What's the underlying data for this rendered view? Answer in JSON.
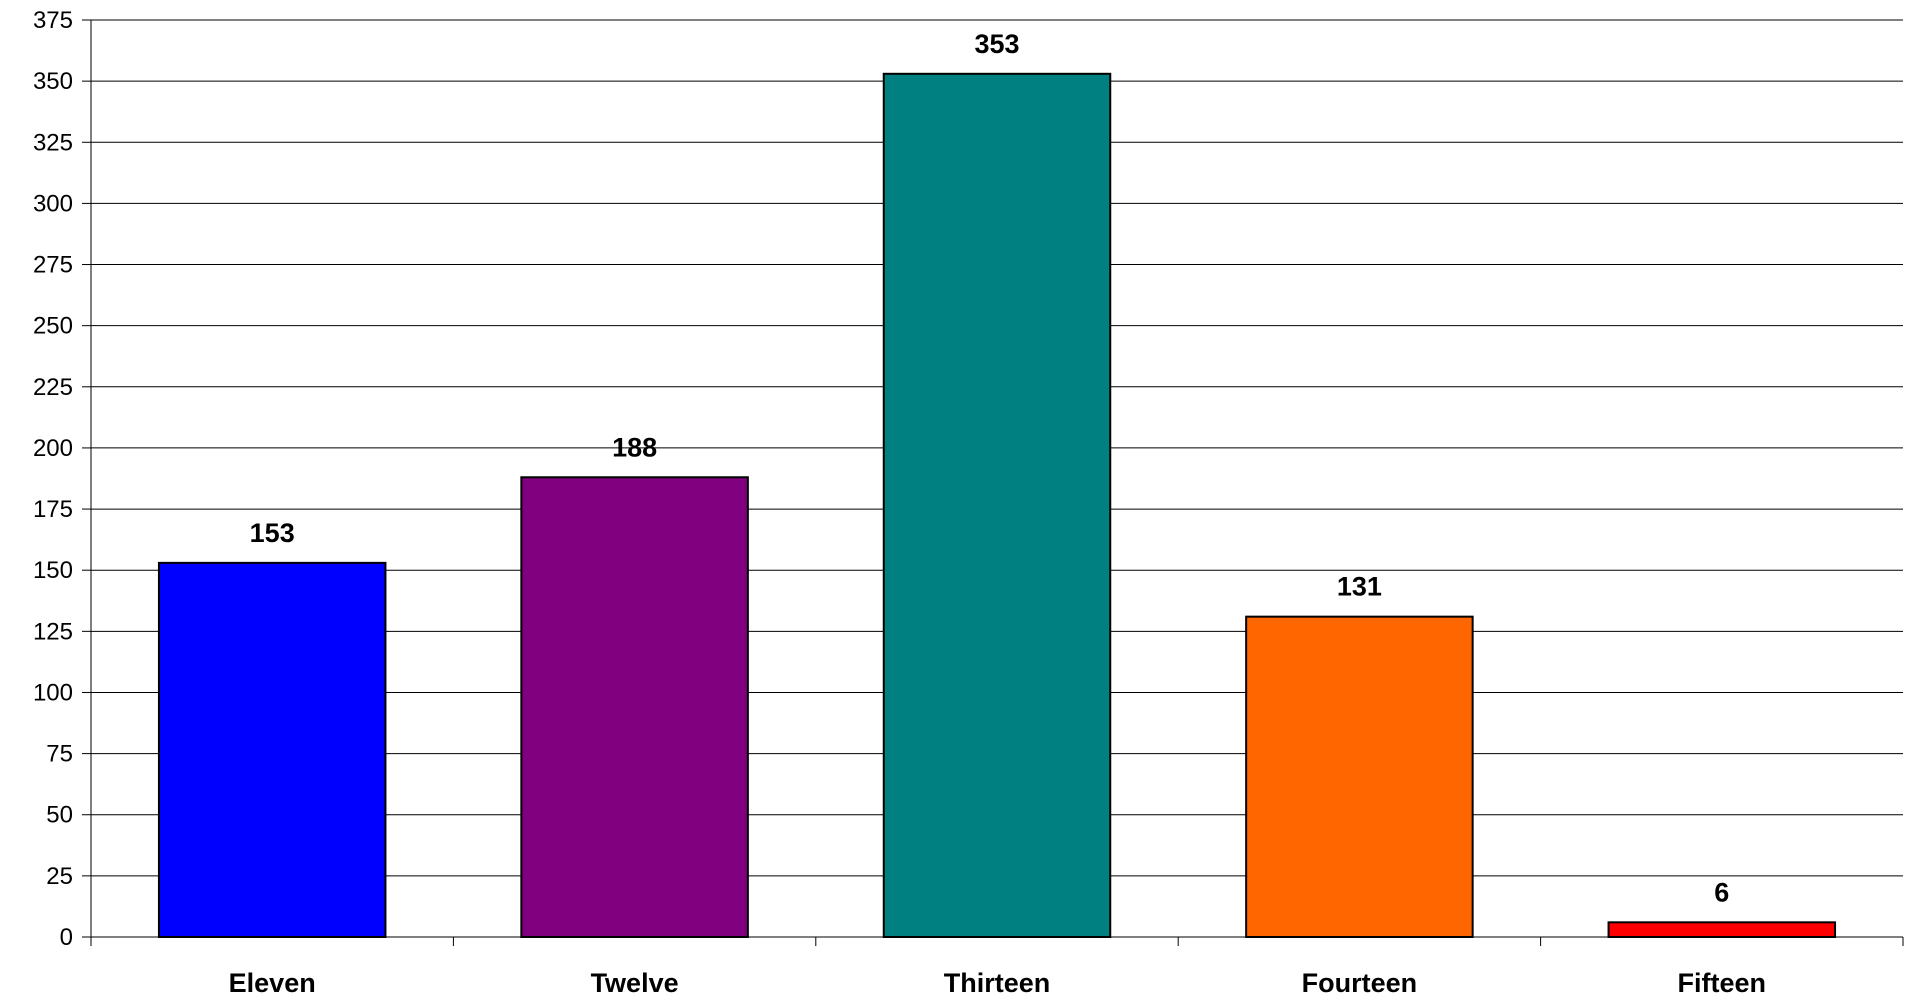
{
  "chart_data": {
    "type": "bar",
    "title": "",
    "xlabel": "",
    "ylabel": "",
    "categories": [
      "Eleven",
      "Twelve",
      "Thirteen",
      "Fourteen",
      "Fifteen"
    ],
    "values": [
      153,
      188,
      353,
      131,
      6
    ],
    "colors": [
      "#0000FF",
      "#800080",
      "#008080",
      "#FF6600",
      "#FF0000"
    ],
    "ylim": [
      0,
      375
    ],
    "y_ticks": [
      0,
      25,
      50,
      75,
      100,
      125,
      150,
      175,
      200,
      225,
      250,
      275,
      300,
      325,
      350,
      375
    ],
    "grid": true,
    "legend": "none",
    "data_labels": true
  }
}
